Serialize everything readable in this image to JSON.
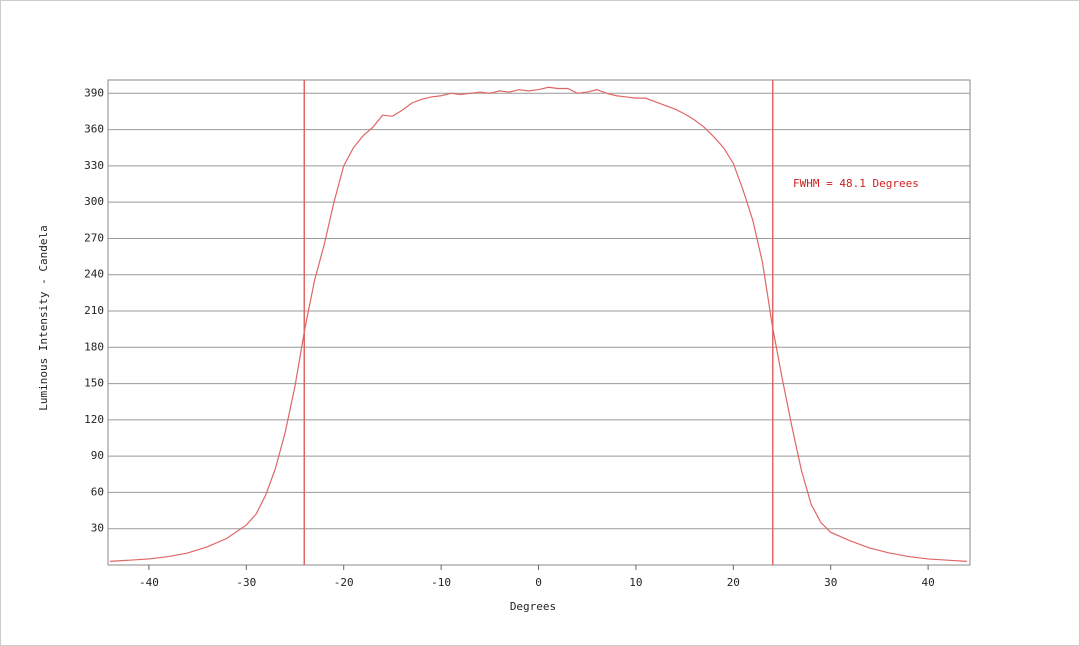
{
  "chart_data": {
    "type": "line",
    "xlabel": "Degrees",
    "ylabel": "Luminous Intensity - Candela",
    "annotation": "FWHM = 48.1 Degrees",
    "xlim": [
      -44.2,
      44.3
    ],
    "ylim": [
      0,
      401
    ],
    "xticks": [
      -40,
      -30,
      -20,
      -10,
      0,
      10,
      20,
      30,
      40
    ],
    "yticks": [
      30,
      60,
      90,
      120,
      150,
      180,
      210,
      240,
      270,
      300,
      330,
      360,
      390
    ],
    "grid": true,
    "vlines": [
      -24.05,
      24.05
    ],
    "series": [
      {
        "color": "#e06666",
        "x": [
          -44,
          -42,
          -40,
          -38,
          -36,
          -34,
          -32,
          -30,
          -29,
          -28,
          -27,
          -26,
          -25,
          -24,
          -23,
          -22,
          -21,
          -20,
          -19,
          -18,
          -17,
          -16,
          -15,
          -14,
          -13,
          -12,
          -11,
          -10,
          -9,
          -8,
          -7,
          -6,
          -5,
          -4,
          -3,
          -2,
          -1,
          0,
          1,
          2,
          3,
          4,
          5,
          6,
          7,
          8,
          9,
          10,
          11,
          12,
          13,
          14,
          15,
          16,
          17,
          18,
          19,
          20,
          21,
          22,
          23,
          24,
          25,
          26,
          27,
          28,
          29,
          30,
          32,
          34,
          36,
          38,
          40,
          42,
          44
        ],
        "values": [
          3,
          4,
          5,
          7,
          10,
          15,
          22,
          33,
          42,
          58,
          80,
          110,
          148,
          195,
          235,
          265,
          300,
          330,
          345,
          355,
          362,
          372,
          371,
          376,
          382,
          385,
          387,
          388,
          390,
          389,
          390,
          391,
          390,
          392,
          391,
          393,
          392,
          393,
          395,
          394,
          394,
          390,
          391,
          393,
          390,
          388,
          387,
          386,
          386,
          383,
          380,
          377,
          373,
          368,
          362,
          354,
          345,
          332,
          310,
          285,
          250,
          198,
          155,
          115,
          78,
          50,
          35,
          27,
          20,
          14,
          10,
          7,
          5,
          4,
          3
        ]
      }
    ]
  }
}
